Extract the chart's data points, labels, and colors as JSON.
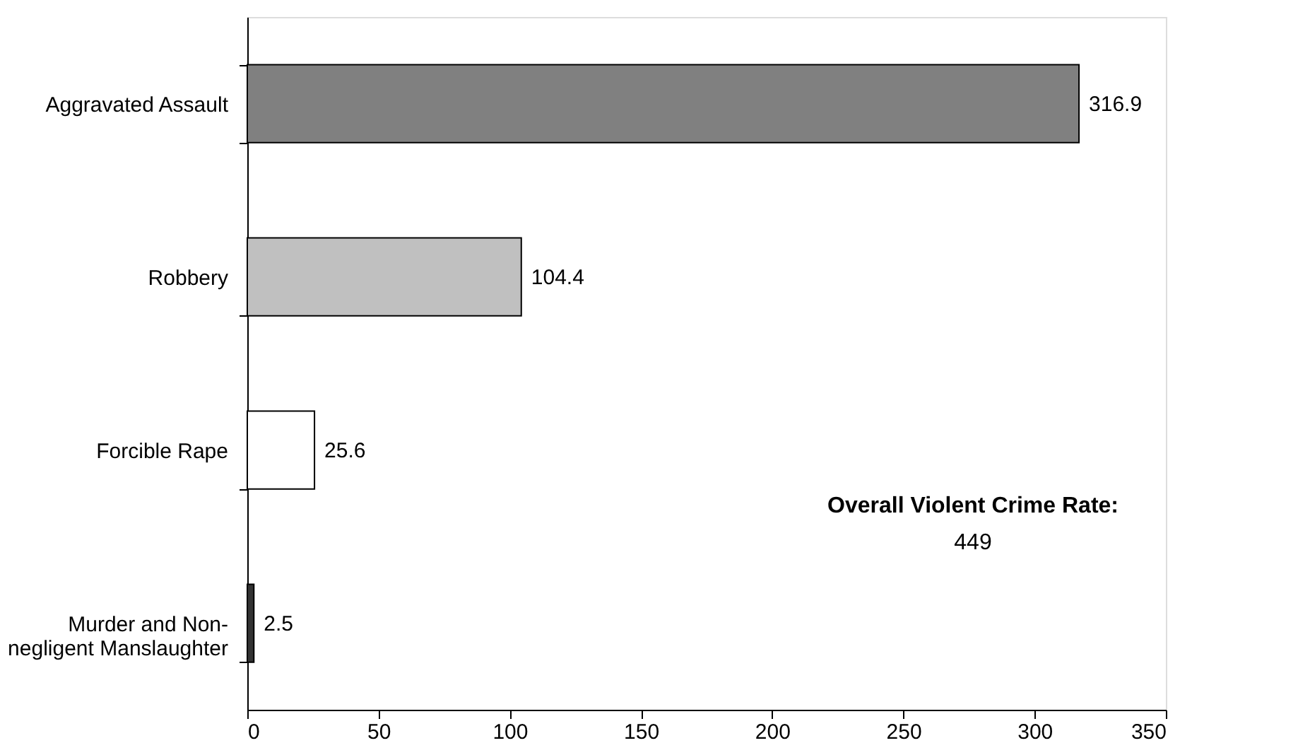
{
  "chart_data": {
    "type": "bar",
    "orientation": "horizontal",
    "categories": [
      "Aggravated Assault",
      "Robbery",
      "Forcible Rape",
      "Murder and Non-negligent Manslaughter"
    ],
    "values": [
      316.9,
      104.4,
      25.6,
      2.5
    ],
    "colors": [
      "#808080",
      "#c0c0c0",
      "#ffffff",
      "#333333"
    ],
    "xlim": [
      0,
      350
    ],
    "xticks": [
      0,
      50,
      100,
      150,
      200,
      250,
      300,
      350
    ],
    "grid": false,
    "data_labels": true,
    "annotations": [
      "Overall Violent Crime Rate:",
      "449"
    ]
  }
}
